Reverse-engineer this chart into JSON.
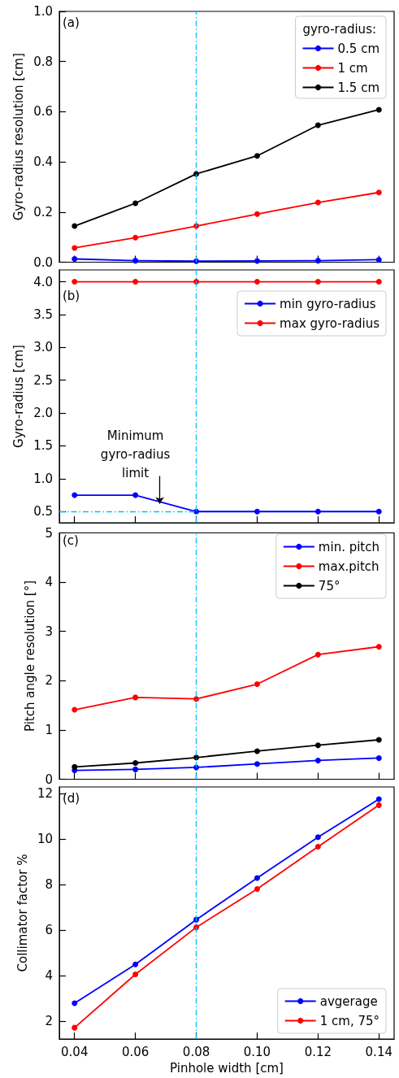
{
  "chart_data": [
    {
      "type": "line",
      "ylabel": "Gyro-radius resolution [cm]",
      "legend_title": "gyro-radius:",
      "annotations": [
        "(a)"
      ],
      "x": [
        0.04,
        0.06,
        0.08,
        0.1,
        0.12,
        0.14
      ],
      "series": [
        {
          "name": "0.5 cm",
          "color": "#0000ff",
          "values": [
            0.013,
            0.006,
            0.004,
            0.005,
            0.006,
            0.01
          ]
        },
        {
          "name": "1 cm",
          "color": "#ff0000",
          "values": [
            0.057,
            0.098,
            0.144,
            0.192,
            0.238,
            0.278
          ]
        },
        {
          "name": "1.5 cm",
          "color": "#000000",
          "values": [
            0.144,
            0.235,
            0.352,
            0.424,
            0.546,
            0.608
          ]
        }
      ],
      "xlim": [
        0.035,
        0.145
      ],
      "xticks": [
        0.04,
        0.06,
        0.08,
        0.1,
        0.12,
        0.14
      ],
      "ylim": [
        0,
        1
      ],
      "yticks": [
        {
          "value": 0,
          "label": "0.0"
        },
        0.2,
        0.4,
        0.6,
        0.8,
        {
          "value": 1,
          "label": "1.0"
        }
      ],
      "ref_lines": [
        {
          "axis": "x",
          "value": 0.08,
          "color": "#00bfff",
          "line_style": "dashed"
        }
      ],
      "tick_labels": "y",
      "legend": "top right",
      "marker": "circle",
      "line_style": "solid",
      "grid": false
    },
    {
      "type": "line",
      "ylabel": "Gyro-radius [cm]",
      "annotations": [
        "(b)",
        {
          "text": "Minimum\ngyro-radius\nlimit",
          "x": 0.068,
          "y": 0.62
        }
      ],
      "x": [
        0.04,
        0.06,
        0.08,
        0.1,
        0.12,
        0.14
      ],
      "series": [
        {
          "name": "min gyro-radius",
          "color": "#0000ff",
          "values": [
            0.75,
            0.75,
            0.5,
            0.5,
            0.5,
            0.5
          ]
        },
        {
          "name": "max gyro-radius",
          "color": "#ff0000",
          "values": [
            4.0,
            4.0,
            4.0,
            4.0,
            4.0,
            4.0
          ]
        }
      ],
      "xlim": [
        0.035,
        0.145
      ],
      "xticks": [
        0.04,
        0.06,
        0.08,
        0.1,
        0.12,
        0.14
      ],
      "ylim": [
        0.33,
        4.18
      ],
      "yticks": [
        0.5,
        {
          "value": 1,
          "label": "1.0"
        },
        1.5,
        {
          "value": 2,
          "label": "2.0"
        },
        2.5,
        {
          "value": 3,
          "label": "3.0"
        },
        3.5,
        {
          "value": 4,
          "label": "4.0"
        }
      ],
      "ref_lines": [
        {
          "axis": "x",
          "value": 0.08,
          "color": "#00bfff",
          "line_style": "dashed"
        },
        {
          "axis": "y",
          "value": 0.5,
          "color": "#00bfff",
          "line_style": "dashed"
        }
      ],
      "tick_labels": "y",
      "legend": "top right",
      "marker": "circle",
      "line_style": "solid",
      "grid": false
    },
    {
      "type": "line",
      "ylabel": "Pitch angle resolution [°]",
      "annotations": [
        "(c)"
      ],
      "x": [
        0.04,
        0.06,
        0.08,
        0.1,
        0.12,
        0.14
      ],
      "series": [
        {
          "name": "min. pitch",
          "color": "#0000ff",
          "values": [
            0.18,
            0.2,
            0.24,
            0.31,
            0.38,
            0.43
          ]
        },
        {
          "name": "max.pitch",
          "color": "#ff0000",
          "values": [
            1.41,
            1.66,
            1.63,
            1.93,
            2.53,
            2.69
          ]
        },
        {
          "name": "75°",
          "color": "#000000",
          "values": [
            0.25,
            0.33,
            0.44,
            0.57,
            0.69,
            0.8
          ]
        }
      ],
      "xlim": [
        0.035,
        0.145
      ],
      "xticks": [
        0.04,
        0.06,
        0.08,
        0.1,
        0.12,
        0.14
      ],
      "ylim": [
        0,
        5
      ],
      "yticks": [
        0,
        1,
        2,
        3,
        4,
        5
      ],
      "ref_lines": [
        {
          "axis": "x",
          "value": 0.08,
          "color": "#00bfff",
          "line_style": "dashed"
        }
      ],
      "tick_labels": "y",
      "legend": "top right",
      "marker": "circle",
      "line_style": "solid",
      "grid": false
    },
    {
      "type": "line",
      "xlabel": "Pinhole width [cm]",
      "ylabel": "Collimator factor %",
      "annotations": [
        "(d)"
      ],
      "x": [
        0.04,
        0.06,
        0.08,
        0.1,
        0.12,
        0.14
      ],
      "series": [
        {
          "name": "avgerage",
          "color": "#0000ff",
          "values": [
            2.78,
            4.49,
            6.46,
            8.29,
            10.09,
            11.76
          ]
        },
        {
          "name": "1 cm, 75°",
          "color": "#ff0000",
          "values": [
            1.7,
            4.05,
            6.12,
            7.81,
            9.67,
            11.5
          ]
        }
      ],
      "xlim": [
        0.035,
        0.145
      ],
      "xticks": [
        0.04,
        0.06,
        0.08,
        {
          "value": 0.1,
          "label": "0.10"
        },
        0.12,
        0.14
      ],
      "ylim": [
        1.2,
        12.3
      ],
      "yticks": [
        2,
        4,
        6,
        8,
        10,
        12
      ],
      "ref_lines": [
        {
          "axis": "x",
          "value": 0.08,
          "color": "#00bfff",
          "line_style": "dashed"
        }
      ],
      "legend": "bottom right",
      "marker": "circle",
      "line_style": "solid",
      "grid": false
    }
  ]
}
